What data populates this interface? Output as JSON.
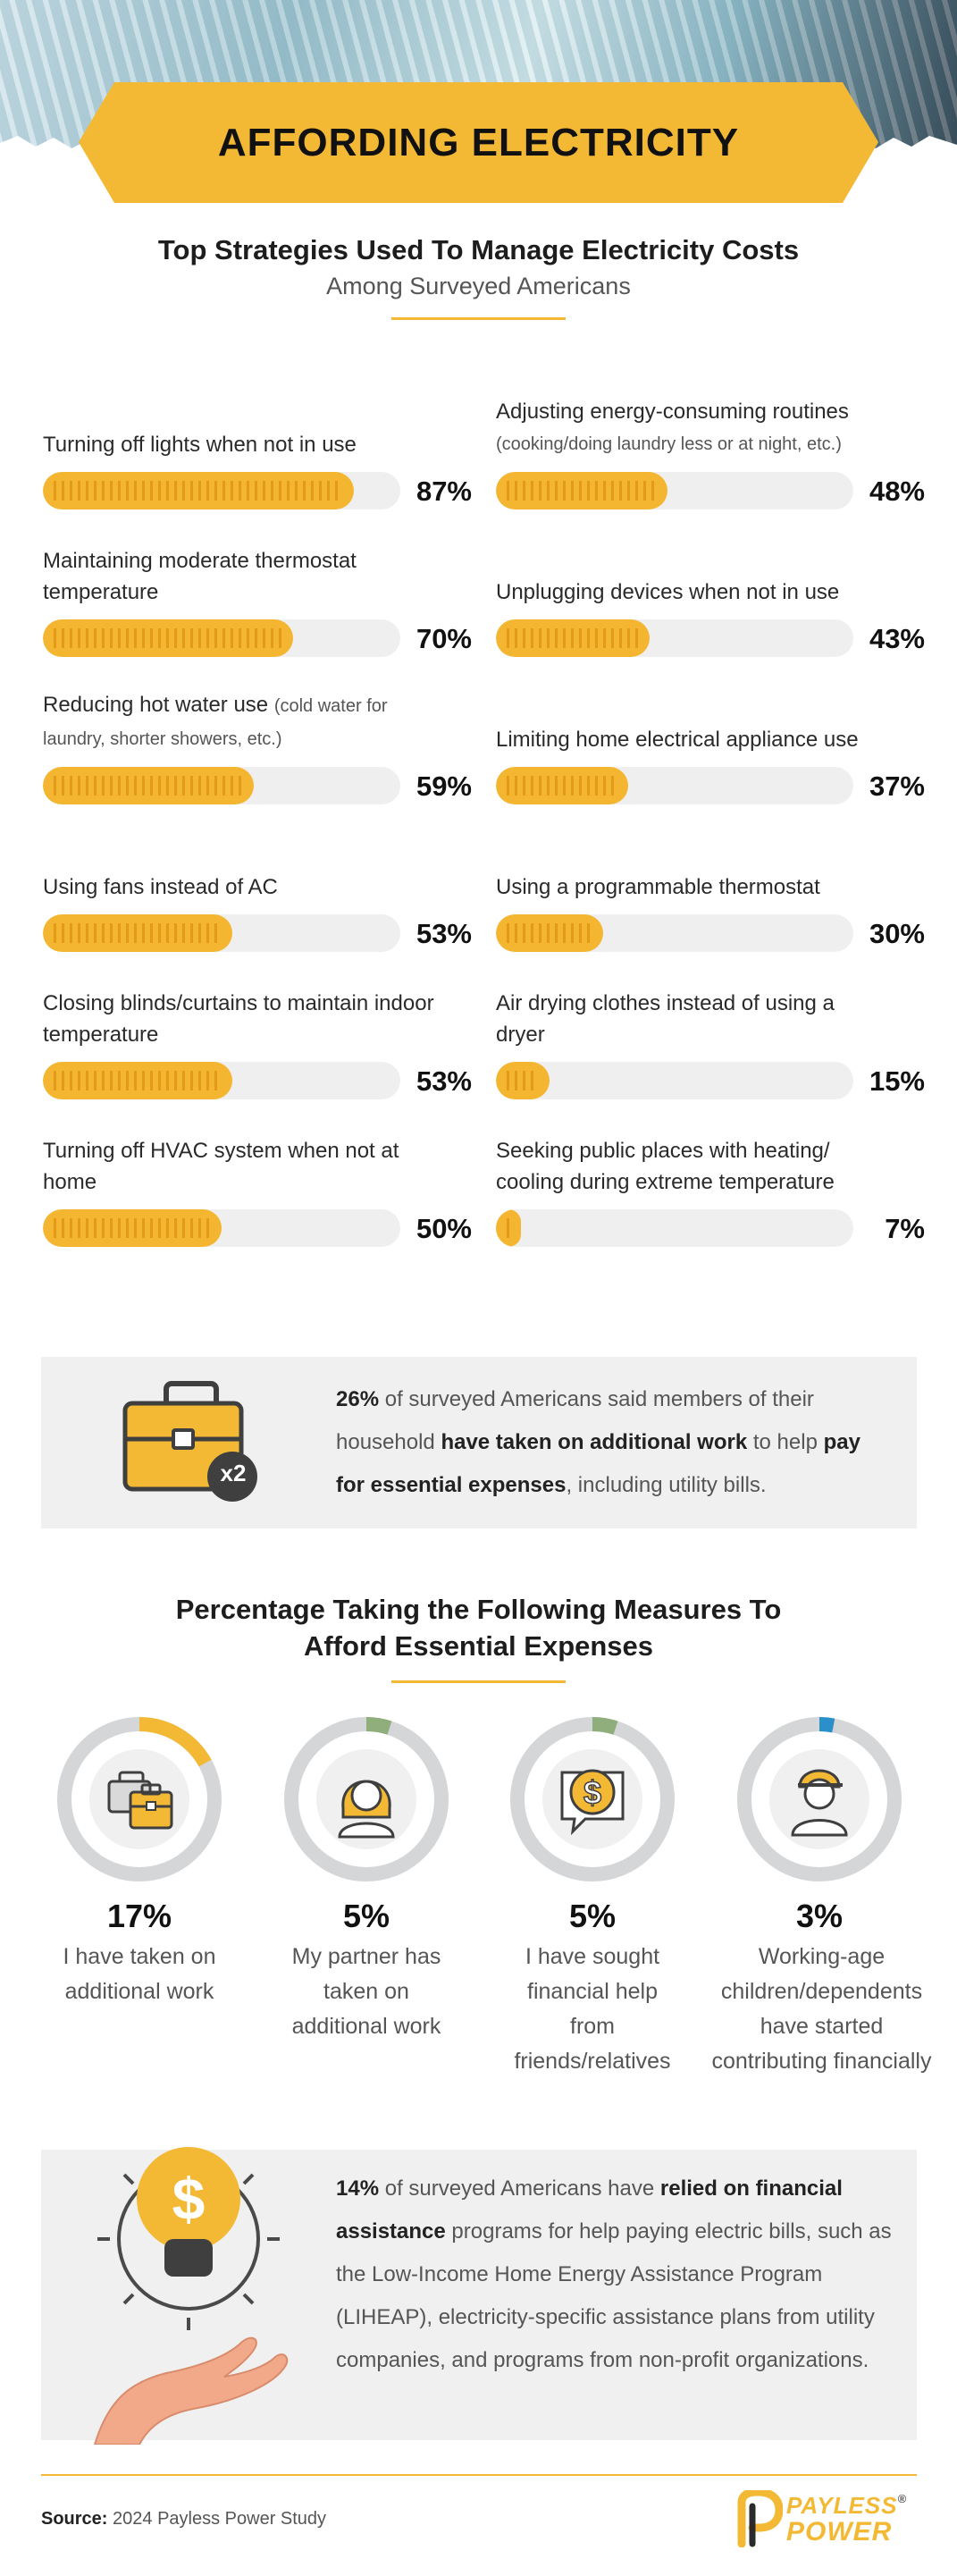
{
  "header": {
    "title": "AFFORDING ELECTRICITY"
  },
  "strategies": {
    "title": "Top Strategies Used To Manage Electricity Costs",
    "subtitle": "Among Surveyed Americans",
    "left": [
      {
        "label": "Turning off lights when not in use",
        "note": "",
        "value_label": "87%"
      },
      {
        "label": "Maintaining moderate thermostat temperature",
        "note": "",
        "value_label": "70%"
      },
      {
        "label": "Reducing hot water use",
        "note": "(cold water for laundry, shorter showers, etc.)",
        "value_label": "59%"
      },
      {
        "label": "Using fans instead of AC",
        "note": "",
        "value_label": "53%"
      },
      {
        "label": "Closing blinds/curtains to maintain indoor temperature",
        "note": "",
        "value_label": "53%"
      },
      {
        "label": "Turning off HVAC system when not at home",
        "note": "",
        "value_label": "50%"
      }
    ],
    "right": [
      {
        "label": "Adjusting energy-consuming routines",
        "note": "(cooking/doing laundry less or at night, etc.)",
        "value_label": "48%"
      },
      {
        "label": "Unplugging devices when not in use",
        "note": "",
        "value_label": "43%"
      },
      {
        "label": "Limiting home electrical appliance use",
        "note": "",
        "value_label": "37%"
      },
      {
        "label": "Using a programmable thermostat",
        "note": "",
        "value_label": "30%"
      },
      {
        "label": "Air drying clothes instead of using a dryer",
        "note": "",
        "value_label": "15%"
      },
      {
        "label": "Seeking public places with heating/ cooling during extreme temperature",
        "note": "",
        "value_label": "7%"
      }
    ]
  },
  "chart_data": [
    {
      "type": "bar",
      "title": "Top Strategies Used To Manage Electricity Costs",
      "subtitle": "Among Surveyed Americans",
      "categories": [
        "Turning off lights when not in use",
        "Maintaining moderate thermostat temperature",
        "Reducing hot water use (cold water for laundry, shorter showers, etc.)",
        "Using fans instead of AC",
        "Closing blinds/curtains to maintain indoor temperature",
        "Turning off HVAC system when not at home",
        "Adjusting energy-consuming routines (cooking/doing laundry less or at night, etc.)",
        "Unplugging devices when not in use",
        "Limiting home electrical appliance use",
        "Using a programmable thermostat",
        "Air drying clothes instead of using a dryer",
        "Seeking public places with heating/ cooling during extreme temperature"
      ],
      "values": [
        87,
        70,
        59,
        53,
        53,
        50,
        48,
        43,
        37,
        30,
        15,
        7
      ],
      "ylim": [
        0,
        100
      ],
      "orientation": "horizontal",
      "layout": "two columns of six"
    },
    {
      "type": "pie",
      "title": "Percentage Taking the Following Measures To Afford Essential Expenses",
      "categories": [
        "I have taken on additional work",
        "My partner has taken on additional work",
        "I have sought financial help from friends/relatives",
        "Working-age children/dependents have started contributing financially"
      ],
      "values": [
        17,
        5,
        5,
        3
      ],
      "style": "separate donut gauges"
    }
  ],
  "callout_work": {
    "stat": "26%",
    "text1": " of surveyed Americans said members of their household ",
    "bold1": "have taken on additional work",
    "text2": " to help ",
    "bold2": "pay for essential expenses",
    "text3": ", including utility bills.",
    "badge": "x2",
    "icon": "briefcase-icon"
  },
  "measures": {
    "title_line1": "Percentage Taking the Following Measures To",
    "title_line2": "Afford Essential Expenses",
    "items": [
      {
        "pct": "17%",
        "label": "I have taken on additional work",
        "value": 17,
        "color": "#f3b935",
        "icon": "briefcase-icon"
      },
      {
        "pct": "5%",
        "label": "My partner has taken on additional work",
        "value": 5,
        "color": "#8fae7c",
        "icon": "woman-avatar-icon"
      },
      {
        "pct": "5%",
        "label": "I have sought financial help from friends/relatives",
        "value": 5,
        "color": "#8fae7c",
        "icon": "dollar-speech-bubble-icon"
      },
      {
        "pct": "3%",
        "label": "Working-age children/dependents have started contributing financially",
        "value": 3,
        "color": "#2b8fc9",
        "icon": "child-avatar-icon"
      }
    ]
  },
  "callout_assist": {
    "stat": "14%",
    "text1": " of surveyed Americans have ",
    "bold1": "relied on financial assistance",
    "text2": " programs for help paying electric bills, such as the Low-Income Home Energy Assistance Program (LIHEAP), electricity-specific assistance plans from utility companies, and programs from non-profit organizations.",
    "icon": "lightbulb-dollar-hand-icon"
  },
  "footer": {
    "source_label": "Source:",
    "source_text": " 2024 Payless Power Study",
    "logo_line1": "PAYLESS",
    "logo_line2": "POWER",
    "logo_mark": "®"
  },
  "colors": {
    "accent": "#f3b935",
    "bar_fill": "#f4b630",
    "track": "#efefef",
    "ring": "#d4d6d8",
    "callout_bg": "#f0f0f0"
  }
}
